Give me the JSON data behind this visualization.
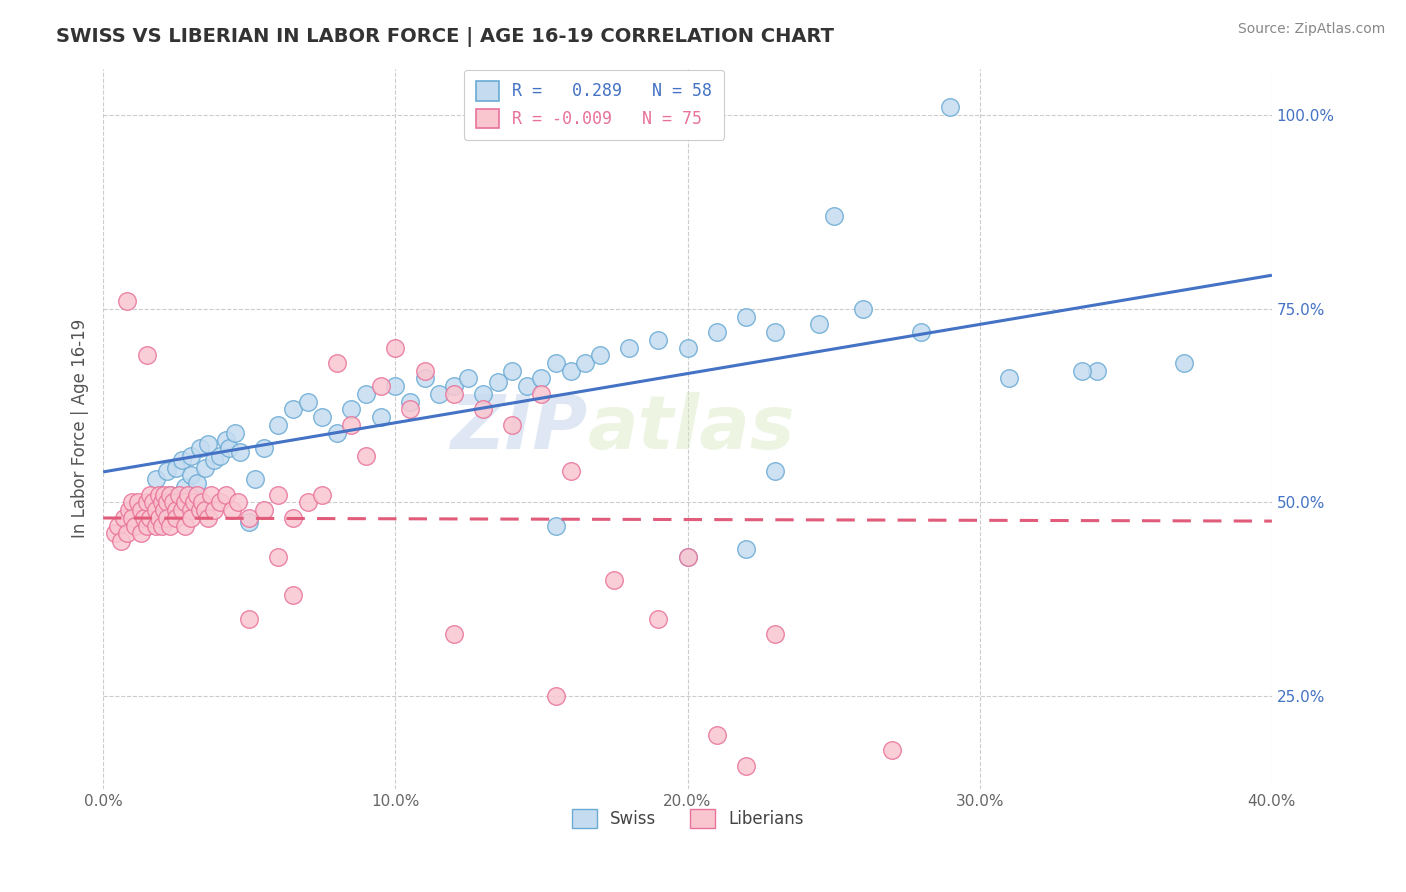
{
  "title": "SWISS VS LIBERIAN IN LABOR FORCE | AGE 16-19 CORRELATION CHART",
  "source": "Source: ZipAtlas.com",
  "ylabel": "In Labor Force | Age 16-19",
  "xlim": [
    0.0,
    0.4
  ],
  "ylim": [
    0.13,
    1.06
  ],
  "yticks": [
    0.25,
    0.5,
    0.75,
    1.0
  ],
  "ytick_labels": [
    "25.0%",
    "50.0%",
    "75.0%",
    "100.0%"
  ],
  "xticks": [
    0.0,
    0.1,
    0.2,
    0.3,
    0.4
  ],
  "xtick_labels": [
    "0.0%",
    "10.0%",
    "20.0%",
    "30.0%",
    "40.0%"
  ],
  "swiss_R": 0.289,
  "swiss_N": 58,
  "liberian_R": -0.009,
  "liberian_N": 75,
  "swiss_color": "#c5dcf0",
  "swiss_edge": "#6aaad4",
  "liberian_color": "#f9c6d0",
  "liberian_edge": "#e8729a",
  "swiss_line_color": "#4472c4",
  "liberian_line_color": "#e05c7a",
  "watermark_zip": "ZIP",
  "watermark_atlas": "atlas",
  "swiss_scatter_x": [
    0.018,
    0.02,
    0.022,
    0.023,
    0.025,
    0.026,
    0.027,
    0.028,
    0.03,
    0.03,
    0.032,
    0.033,
    0.035,
    0.036,
    0.038,
    0.04,
    0.042,
    0.043,
    0.045,
    0.047,
    0.05,
    0.052,
    0.055,
    0.06,
    0.065,
    0.07,
    0.075,
    0.08,
    0.085,
    0.09,
    0.095,
    0.1,
    0.105,
    0.11,
    0.115,
    0.12,
    0.125,
    0.13,
    0.135,
    0.14,
    0.145,
    0.15,
    0.155,
    0.16,
    0.165,
    0.17,
    0.18,
    0.19,
    0.2,
    0.21,
    0.22,
    0.23,
    0.245,
    0.26,
    0.28,
    0.31,
    0.34,
    0.37
  ],
  "swiss_scatter_y": [
    0.53,
    0.49,
    0.54,
    0.51,
    0.545,
    0.51,
    0.555,
    0.52,
    0.535,
    0.56,
    0.525,
    0.57,
    0.545,
    0.575,
    0.555,
    0.56,
    0.58,
    0.57,
    0.59,
    0.565,
    0.475,
    0.53,
    0.57,
    0.6,
    0.62,
    0.63,
    0.61,
    0.59,
    0.62,
    0.64,
    0.61,
    0.65,
    0.63,
    0.66,
    0.64,
    0.65,
    0.66,
    0.64,
    0.655,
    0.67,
    0.65,
    0.66,
    0.68,
    0.67,
    0.68,
    0.69,
    0.7,
    0.71,
    0.7,
    0.72,
    0.74,
    0.72,
    0.73,
    0.75,
    0.72,
    0.66,
    0.67,
    0.68
  ],
  "swiss_outlier_x": [
    0.155,
    0.2,
    0.22,
    0.23,
    0.25,
    0.29,
    0.335
  ],
  "swiss_outlier_y": [
    0.47,
    0.43,
    0.44,
    0.54,
    0.87,
    1.01,
    0.67
  ],
  "liberian_scatter_x": [
    0.004,
    0.005,
    0.006,
    0.007,
    0.008,
    0.009,
    0.01,
    0.01,
    0.011,
    0.012,
    0.013,
    0.013,
    0.014,
    0.015,
    0.015,
    0.016,
    0.016,
    0.017,
    0.018,
    0.018,
    0.019,
    0.019,
    0.02,
    0.02,
    0.021,
    0.021,
    0.022,
    0.022,
    0.023,
    0.023,
    0.024,
    0.025,
    0.025,
    0.026,
    0.027,
    0.028,
    0.028,
    0.029,
    0.03,
    0.03,
    0.031,
    0.032,
    0.033,
    0.034,
    0.035,
    0.036,
    0.037,
    0.038,
    0.04,
    0.042,
    0.044,
    0.046,
    0.05,
    0.055,
    0.06,
    0.065,
    0.07,
    0.075,
    0.08,
    0.085,
    0.09,
    0.095,
    0.1,
    0.105,
    0.11,
    0.12,
    0.13,
    0.14,
    0.15,
    0.16,
    0.175,
    0.19,
    0.2,
    0.23,
    0.27
  ],
  "liberian_scatter_y": [
    0.46,
    0.47,
    0.45,
    0.48,
    0.46,
    0.49,
    0.5,
    0.48,
    0.47,
    0.5,
    0.46,
    0.49,
    0.48,
    0.5,
    0.47,
    0.51,
    0.48,
    0.5,
    0.49,
    0.47,
    0.51,
    0.48,
    0.5,
    0.47,
    0.51,
    0.49,
    0.5,
    0.48,
    0.51,
    0.47,
    0.5,
    0.49,
    0.48,
    0.51,
    0.49,
    0.5,
    0.47,
    0.51,
    0.49,
    0.48,
    0.5,
    0.51,
    0.49,
    0.5,
    0.49,
    0.48,
    0.51,
    0.49,
    0.5,
    0.51,
    0.49,
    0.5,
    0.48,
    0.49,
    0.51,
    0.48,
    0.5,
    0.51,
    0.68,
    0.6,
    0.56,
    0.65,
    0.7,
    0.62,
    0.67,
    0.64,
    0.62,
    0.6,
    0.64,
    0.54,
    0.4,
    0.35,
    0.43,
    0.33,
    0.18
  ],
  "liberian_outlier_x": [
    0.008,
    0.015,
    0.05,
    0.06,
    0.065,
    0.12,
    0.155,
    0.21,
    0.22
  ],
  "liberian_outlier_y": [
    0.76,
    0.69,
    0.35,
    0.43,
    0.38,
    0.33,
    0.25,
    0.2,
    0.16
  ]
}
